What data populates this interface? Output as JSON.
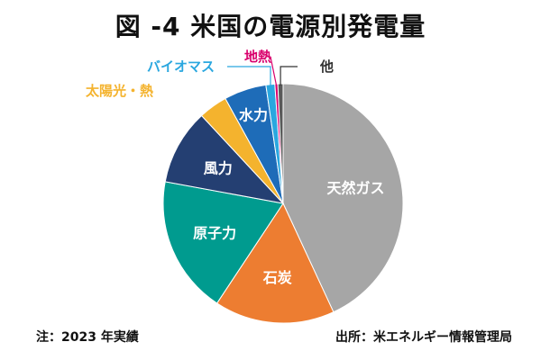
{
  "chart_data": {
    "type": "pie",
    "title": "図 -4 米国の電源別発電量",
    "slices": [
      {
        "label": "天然ガス",
        "value": 43.1,
        "color": "#A6A6A6",
        "label_color": "#ffffff",
        "label_position": "inside"
      },
      {
        "label": "石炭",
        "value": 16.2,
        "color": "#ED7D31",
        "label_color": "#ffffff",
        "label_position": "inside"
      },
      {
        "label": "原子力",
        "value": 18.6,
        "color": "#009B8F",
        "label_color": "#ffffff",
        "label_position": "inside"
      },
      {
        "label": "風力",
        "value": 10.2,
        "color": "#243F72",
        "label_color": "#ffffff",
        "label_position": "inside"
      },
      {
        "label": "太陽光・熱",
        "value": 3.9,
        "color": "#F4B32E",
        "label_color": "#F4B32E",
        "label_position": "outside"
      },
      {
        "label": "水力",
        "value": 5.7,
        "color": "#1E6CB8",
        "label_color": "#ffffff",
        "label_position": "inside"
      },
      {
        "label": "バイオマス",
        "value": 1.2,
        "color": "#2AA7DF",
        "label_color": "#2AA7DF",
        "label_position": "outside"
      },
      {
        "label": "地熱",
        "value": 0.4,
        "color": "#D9006C",
        "label_color": "#D9006C",
        "label_position": "outside"
      },
      {
        "label": "他",
        "value": 0.7,
        "color": "#595959",
        "label_color": "#333333",
        "label_position": "outside"
      }
    ],
    "start_direction": "12 o'clock",
    "direction": "clockwise",
    "legend": "none"
  },
  "footnote": "注：2023 年実績",
  "source": "出所：米エネルギー情報管理局"
}
